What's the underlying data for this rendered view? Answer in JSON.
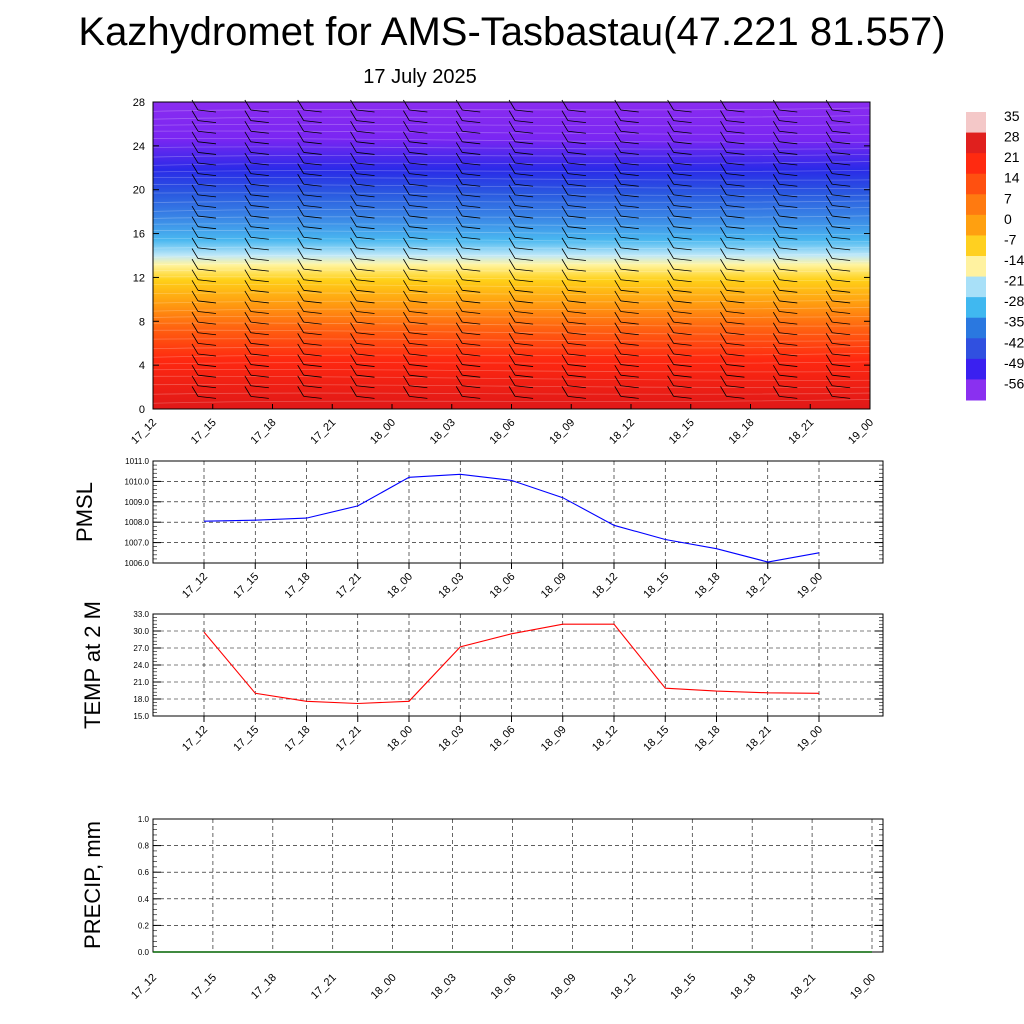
{
  "title": "Kazhydromet for AMS-Tasbastau(47.221 81.557)",
  "subtitle": "17 July 2025",
  "time_labels": [
    "17_12",
    "17_15",
    "17_18",
    "17_21",
    "18_00",
    "18_03",
    "18_06",
    "18_09",
    "18_12",
    "18_15",
    "18_18",
    "18_21",
    "19_00"
  ],
  "chart_data": [
    {
      "type": "heatmap",
      "xlabel": "",
      "ylabel": "",
      "y_ticks": [
        0,
        4,
        8,
        12,
        16,
        20,
        24,
        28
      ],
      "ylim": [
        0,
        28
      ],
      "colorbar": {
        "labels": [
          "35",
          "28",
          "21",
          "14",
          "7",
          "0",
          "-7",
          "-14",
          "-21",
          "-28",
          "-35",
          "-42",
          "-49",
          "-56"
        ],
        "colors": [
          "#f4c8c8",
          "#e0201e",
          "#ff2a10",
          "#ff5010",
          "#ff7a10",
          "#ffa010",
          "#ffd020",
          "#fff2a0",
          "#a8e0f8",
          "#40b8f0",
          "#2a78e0",
          "#3050e0",
          "#3a20f0",
          "#8a30f0"
        ]
      },
      "note": "temperature profile with wind barbs"
    },
    {
      "type": "line",
      "ylabel": "PMSL",
      "ylim": [
        1006.0,
        1011.0
      ],
      "y_ticks": [
        "1006.0",
        "1007.0",
        "1008.0",
        "1009.0",
        "1010.0",
        "1011.0"
      ],
      "color": "#0000ff",
      "x": [
        "17_12",
        "17_15",
        "17_18",
        "17_21",
        "18_00",
        "18_03",
        "18_06",
        "18_09",
        "18_12",
        "18_15",
        "18_18",
        "18_21",
        "19_00"
      ],
      "values": [
        1008.05,
        1008.1,
        1008.2,
        1008.8,
        1010.2,
        1010.35,
        1010.05,
        1009.2,
        1007.85,
        1007.15,
        1006.7,
        1006.05,
        1006.5
      ]
    },
    {
      "type": "line",
      "ylabel": "TEMP at 2 M",
      "ylim": [
        15.0,
        33.0
      ],
      "y_ticks": [
        "15.0",
        "18.0",
        "21.0",
        "24.0",
        "27.0",
        "30.0",
        "33.0"
      ],
      "color": "#ff0000",
      "x": [
        "17_12",
        "17_15",
        "17_18",
        "17_21",
        "18_00",
        "18_03",
        "18_06",
        "18_09",
        "18_12",
        "18_15",
        "18_18",
        "18_21",
        "19_00"
      ],
      "values": [
        29.8,
        19.0,
        17.6,
        17.2,
        17.6,
        27.2,
        29.5,
        31.2,
        31.2,
        19.9,
        19.4,
        19.1,
        19.0
      ]
    },
    {
      "type": "line",
      "ylabel": "PRECIP, mm",
      "ylim": [
        0.0,
        1.0
      ],
      "y_ticks": [
        "0.0",
        "0.2",
        "0.4",
        "0.6",
        "0.8",
        "1.0"
      ],
      "color": "#006400",
      "x": [
        "17_12",
        "17_15",
        "17_18",
        "17_21",
        "18_00",
        "18_03",
        "18_06",
        "18_09",
        "18_12",
        "18_15",
        "18_18",
        "18_21",
        "19_00"
      ],
      "values": [
        0,
        0,
        0,
        0,
        0,
        0,
        0,
        0,
        0,
        0,
        0,
        0,
        0
      ]
    }
  ]
}
